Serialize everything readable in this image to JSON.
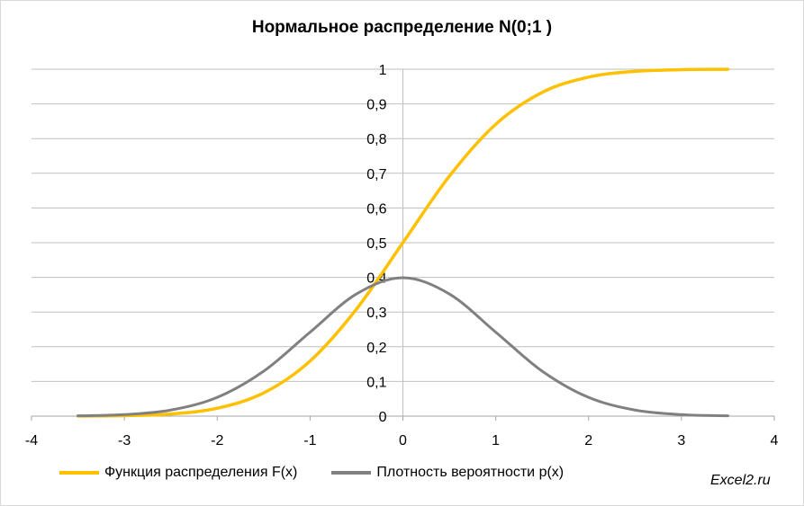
{
  "chart_data": {
    "type": "line",
    "title": "Нормальное распределение N(0;1 )",
    "xlim": [
      -4,
      4
    ],
    "ylim": [
      0,
      1
    ],
    "x_ticks": [
      "-4",
      "-3",
      "-2",
      "-1",
      "0",
      "1",
      "2",
      "3",
      "4"
    ],
    "y_ticks": [
      "0",
      "0,1",
      "0,2",
      "0,3",
      "0,4",
      "0,5",
      "0,6",
      "0,7",
      "0,8",
      "0,9",
      "1"
    ],
    "grid": "horizontal",
    "legend_position": "bottom",
    "series": [
      {
        "name": "Функция распределения F(x)",
        "color": "#ffc000",
        "x": [
          -3.5,
          -3.0,
          -2.5,
          -2.0,
          -1.5,
          -1.0,
          -0.5,
          0.0,
          0.5,
          1.0,
          1.5,
          2.0,
          2.5,
          3.0,
          3.5
        ],
        "values": [
          0.0002,
          0.0013,
          0.0062,
          0.0228,
          0.0668,
          0.1587,
          0.3085,
          0.5,
          0.6915,
          0.8413,
          0.9332,
          0.9772,
          0.9938,
          0.9987,
          0.9998
        ]
      },
      {
        "name": "Плотность вероятности p(x)",
        "color": "#808080",
        "x": [
          -3.5,
          -3.0,
          -2.5,
          -2.0,
          -1.5,
          -1.0,
          -0.5,
          0.0,
          0.5,
          1.0,
          1.5,
          2.0,
          2.5,
          3.0,
          3.5
        ],
        "values": [
          0.0009,
          0.0044,
          0.0175,
          0.054,
          0.1295,
          0.242,
          0.3521,
          0.3989,
          0.3521,
          0.242,
          0.1295,
          0.054,
          0.0175,
          0.0044,
          0.0009
        ]
      }
    ]
  },
  "watermark": "Excel2.ru"
}
